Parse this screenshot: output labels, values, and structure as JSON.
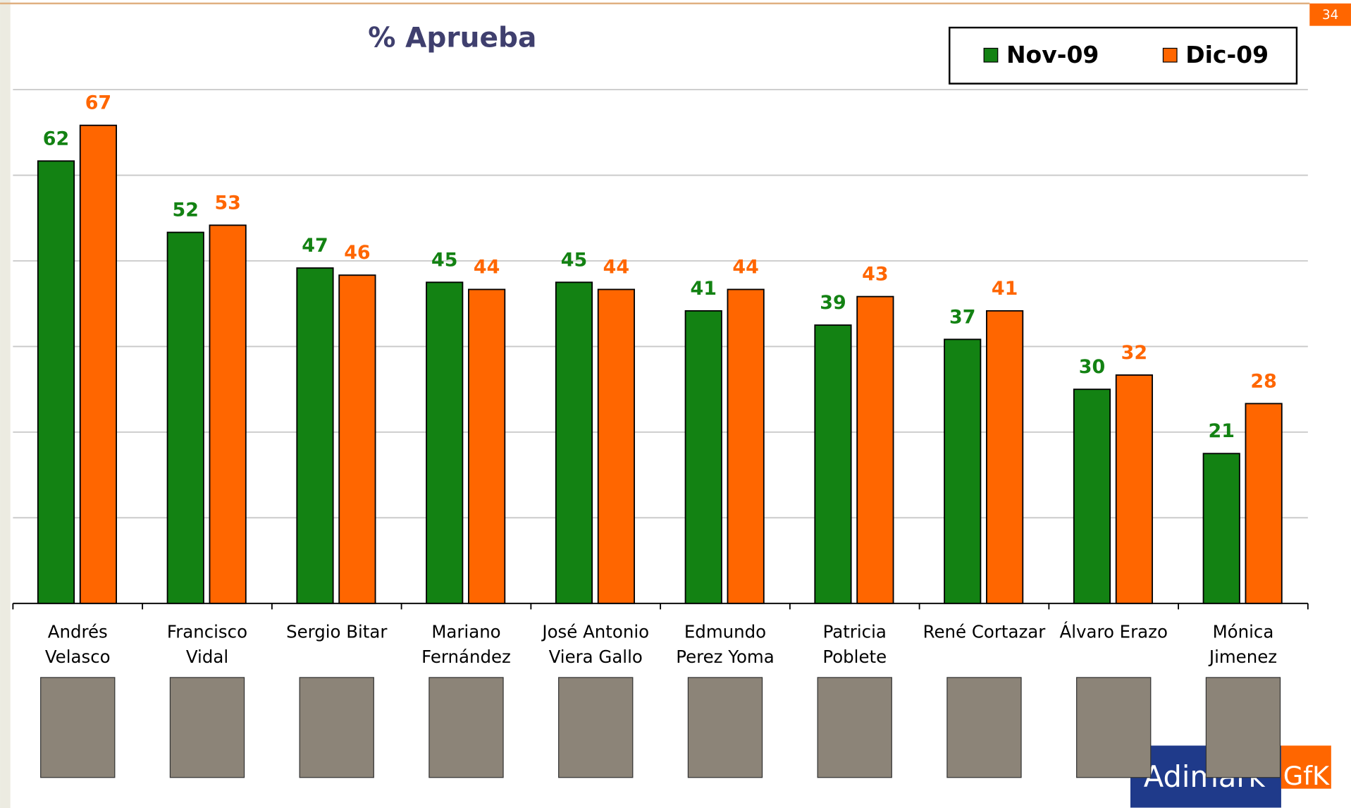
{
  "chart_data": {
    "type": "bar",
    "title": "% Aprueba",
    "categories": [
      [
        "Andrés",
        "Velasco"
      ],
      [
        "Francisco",
        "Vidal"
      ],
      [
        "Sergio Bitar"
      ],
      [
        "Mariano",
        "Fernández"
      ],
      [
        "José Antonio",
        "Viera Gallo"
      ],
      [
        "Edmundo",
        "Perez Yoma"
      ],
      [
        "Patricia",
        "Poblete"
      ],
      [
        "René Cortazar"
      ],
      [
        "Álvaro Erazo"
      ],
      [
        "Mónica",
        "Jimenez"
      ]
    ],
    "series": [
      {
        "name": "Nov-09",
        "color": "#138213",
        "values": [
          62,
          52,
          47,
          45,
          45,
          41,
          39,
          37,
          30,
          21
        ]
      },
      {
        "name": "Dic-09",
        "color": "#ff6600",
        "values": [
          67,
          53,
          46,
          44,
          44,
          44,
          43,
          41,
          32,
          28
        ]
      }
    ],
    "ylim": [
      0,
      72
    ],
    "yticks": [
      0,
      12,
      24,
      36,
      48,
      60,
      72
    ],
    "grid": true,
    "legend": "top-right"
  },
  "slide_number": "34",
  "logo": [
    "Adimark",
    "GfK"
  ]
}
